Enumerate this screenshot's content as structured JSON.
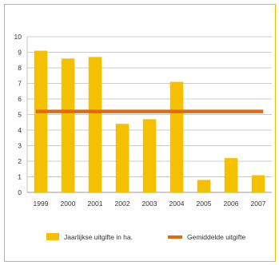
{
  "chart_data": {
    "type": "bar",
    "categories": [
      "1999",
      "2000",
      "2001",
      "2002",
      "2003",
      "2004",
      "2005",
      "2006",
      "2007"
    ],
    "series": [
      {
        "name": "Jaarlijkse uitgifte in ha.",
        "type": "bar",
        "values": [
          9.1,
          8.6,
          8.7,
          4.4,
          4.7,
          7.1,
          0.8,
          2.2,
          1.1
        ]
      },
      {
        "name": "Gemiddelde uitgifte",
        "type": "line",
        "values": [
          5.2,
          5.2,
          5.2,
          5.2,
          5.2,
          5.2,
          5.2,
          5.2,
          5.2
        ]
      }
    ],
    "yticks": [
      "0",
      "1",
      "2",
      "3",
      "4",
      "5",
      "6",
      "7",
      "8",
      "9",
      "10"
    ],
    "ylim": [
      0,
      10
    ],
    "grid": true,
    "legend_position": "bottom"
  },
  "colors": {
    "bar": "#f5c000",
    "line": "#e06a10",
    "grid": "#9a9a9a",
    "frame": "#f2b800"
  }
}
